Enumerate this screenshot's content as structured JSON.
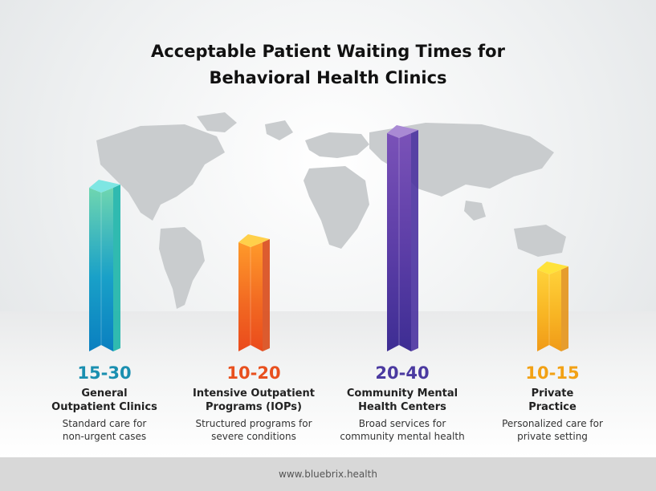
{
  "title_line1": "Acceptable Patient Waiting Times for",
  "title_line2": "Behavioral Health Clinics",
  "footer": "www.bluebrix.health",
  "chart_data": {
    "type": "bar",
    "categories": [
      "General Outpatient Clinics",
      "Intensive Outpatient Programs (IOPs)",
      "Community Mental Health Centers",
      "Private Practice"
    ],
    "ranges": [
      [
        15,
        30
      ],
      [
        10,
        20
      ],
      [
        20,
        40
      ],
      [
        10,
        15
      ]
    ],
    "range_labels": [
      "15-30",
      "10-20",
      "20-40",
      "10-15"
    ],
    "category_lines": [
      [
        "General",
        "Outpatient Clinics"
      ],
      [
        "Intensive Outpatient",
        "Programs (IOPs)"
      ],
      [
        "Community Mental",
        "Health Centers"
      ],
      [
        "Private",
        "Practice"
      ]
    ],
    "descriptions": [
      [
        "Standard care for",
        "non-urgent cases"
      ],
      [
        "Structured programs for",
        "severe conditions"
      ],
      [
        "Broad services for",
        "community mental health"
      ],
      [
        "Personalized care for",
        "private setting"
      ]
    ],
    "colors": [
      {
        "top": "#7ee6e3",
        "label": "#1a8fb0",
        "light": "#6fd6b0",
        "mid": "#19a0c8",
        "dark": "#0a7fc0",
        "side": "#1bb4a8"
      },
      {
        "top": "#ffd04a",
        "label": "#e8501e",
        "light": "#ff9a2a",
        "mid": "#f26a22",
        "dark": "#ea4a1c",
        "side": "#d94a18"
      },
      {
        "top": "#a98ad4",
        "label": "#4b3aa0",
        "light": "#7a52b8",
        "mid": "#5b3da6",
        "dark": "#3d2d93",
        "side": "#4a32a0"
      },
      {
        "top": "#ffe23a",
        "label": "#f2a114",
        "light": "#ffd23a",
        "mid": "#f8b524",
        "dark": "#f09a18",
        "side": "#e49318"
      }
    ],
    "ylim": [
      0,
      40
    ]
  }
}
